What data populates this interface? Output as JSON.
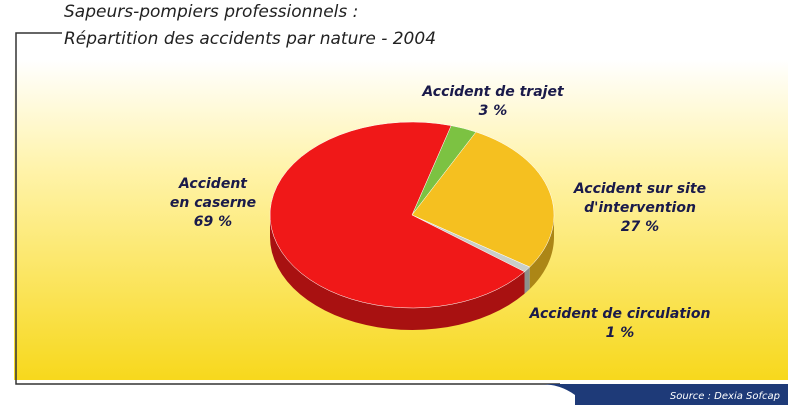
{
  "chart_data": {
    "type": "pie",
    "title": [
      "Sapeurs-pompiers professionnels :",
      "Répartition des accidents par nature - 2004"
    ],
    "categories": [
      "Accident de trajet",
      "Accident sur site\nd'intervention",
      "Accident de circulation",
      "Accident\nen caserne"
    ],
    "values": [
      3,
      27,
      1,
      69
    ],
    "value_labels": [
      "3 %",
      "27 %",
      "1 %",
      "69 %"
    ],
    "colors": [
      "#7cc242",
      "#f5c020",
      "#c9cfc9",
      "#f01818"
    ],
    "source": "Source : Dexia Sofcap"
  }
}
